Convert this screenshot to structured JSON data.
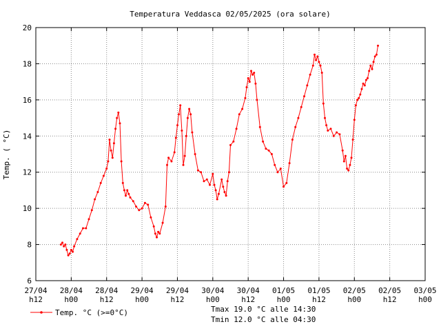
{
  "chart_data": {
    "type": "line",
    "title": "Temperatura Veddasca 02/05/2025 (ora solare)",
    "xlabel": "",
    "ylabel": "Temp. ( °C)",
    "ylim": [
      6,
      20
    ],
    "y_ticks": [
      6,
      8,
      10,
      12,
      14,
      16,
      18,
      20
    ],
    "x_ticks": [
      {
        "line1": "27/04",
        "line2": "h12"
      },
      {
        "line1": "28/04",
        "line2": "h00"
      },
      {
        "line1": "28/04",
        "line2": "h12"
      },
      {
        "line1": "29/04",
        "line2": "h00"
      },
      {
        "line1": "29/04",
        "line2": "h12"
      },
      {
        "line1": "30/04",
        "line2": "h00"
      },
      {
        "line1": "30/04",
        "line2": "h12"
      },
      {
        "line1": "01/05",
        "line2": "h00"
      },
      {
        "line1": "01/05",
        "line2": "h12"
      },
      {
        "line1": "02/05",
        "line2": "h00"
      },
      {
        "line1": "02/05",
        "line2": "h12"
      },
      {
        "line1": "03/05",
        "line2": "h00"
      }
    ],
    "x_unit": "hours from 27/04 h12",
    "xlim": [
      0,
      132
    ],
    "grid": true,
    "legend": "bottom-left",
    "series": [
      {
        "name": "Temp. °C (>=0°C)",
        "color": "#ff0000",
        "points": [
          [
            8.5,
            8.0
          ],
          [
            9.0,
            8.1
          ],
          [
            9.5,
            7.9
          ],
          [
            10.0,
            8.0
          ],
          [
            10.5,
            7.7
          ],
          [
            11.0,
            7.4
          ],
          [
            11.5,
            7.5
          ],
          [
            12.0,
            7.7
          ],
          [
            12.5,
            7.6
          ],
          [
            13.0,
            7.9
          ],
          [
            14.0,
            8.3
          ],
          [
            15.0,
            8.6
          ],
          [
            16.0,
            8.9
          ],
          [
            17.0,
            8.9
          ],
          [
            18.0,
            9.4
          ],
          [
            19.0,
            9.9
          ],
          [
            20.0,
            10.5
          ],
          [
            21.0,
            10.9
          ],
          [
            22.0,
            11.4
          ],
          [
            23.0,
            11.8
          ],
          [
            24.0,
            12.2
          ],
          [
            24.5,
            12.6
          ],
          [
            25.0,
            13.8
          ],
          [
            25.5,
            13.2
          ],
          [
            26.0,
            12.8
          ],
          [
            26.5,
            13.6
          ],
          [
            27.0,
            14.4
          ],
          [
            27.5,
            15.0
          ],
          [
            28.0,
            15.3
          ],
          [
            28.5,
            14.7
          ],
          [
            29.0,
            12.6
          ],
          [
            29.5,
            11.4
          ],
          [
            30.0,
            11.0
          ],
          [
            30.5,
            10.7
          ],
          [
            31.0,
            11.0
          ],
          [
            31.5,
            10.8
          ],
          [
            32.0,
            10.6
          ],
          [
            33.0,
            10.4
          ],
          [
            34.0,
            10.1
          ],
          [
            35.0,
            9.9
          ],
          [
            36.0,
            10.0
          ],
          [
            37.0,
            10.3
          ],
          [
            38.0,
            10.2
          ],
          [
            39.0,
            9.5
          ],
          [
            40.0,
            9.0
          ],
          [
            40.5,
            8.6
          ],
          [
            41.0,
            8.4
          ],
          [
            41.5,
            8.7
          ],
          [
            42.0,
            8.6
          ],
          [
            43.0,
            9.2
          ],
          [
            44.0,
            10.1
          ],
          [
            44.5,
            12.4
          ],
          [
            45.0,
            12.8
          ],
          [
            46.0,
            12.6
          ],
          [
            47.0,
            13.1
          ],
          [
            47.5,
            13.9
          ],
          [
            48.0,
            14.6
          ],
          [
            48.5,
            15.2
          ],
          [
            49.0,
            15.7
          ],
          [
            49.5,
            14.3
          ],
          [
            50.0,
            12.4
          ],
          [
            50.5,
            12.9
          ],
          [
            51.0,
            14.0
          ],
          [
            51.5,
            15.0
          ],
          [
            52.0,
            15.5
          ],
          [
            52.5,
            15.2
          ],
          [
            53.0,
            14.2
          ],
          [
            54.0,
            13.0
          ],
          [
            55.0,
            12.1
          ],
          [
            56.0,
            12.0
          ],
          [
            57.0,
            11.5
          ],
          [
            58.0,
            11.6
          ],
          [
            59.0,
            11.3
          ],
          [
            60.0,
            11.9
          ],
          [
            60.5,
            11.3
          ],
          [
            61.0,
            11.0
          ],
          [
            61.5,
            10.5
          ],
          [
            62.0,
            10.8
          ],
          [
            63.0,
            11.6
          ],
          [
            63.5,
            11.2
          ],
          [
            64.0,
            10.9
          ],
          [
            64.5,
            10.7
          ],
          [
            65.0,
            11.5
          ],
          [
            65.5,
            12.0
          ],
          [
            66.0,
            13.5
          ],
          [
            67.0,
            13.7
          ],
          [
            68.0,
            14.4
          ],
          [
            69.0,
            15.2
          ],
          [
            70.0,
            15.5
          ],
          [
            71.0,
            16.1
          ],
          [
            71.5,
            16.7
          ],
          [
            72.0,
            17.2
          ],
          [
            72.5,
            17.0
          ],
          [
            73.0,
            17.6
          ],
          [
            73.5,
            17.4
          ],
          [
            74.0,
            17.5
          ],
          [
            74.5,
            16.9
          ],
          [
            75.0,
            16.0
          ],
          [
            76.0,
            14.5
          ],
          [
            77.0,
            13.7
          ],
          [
            78.0,
            13.3
          ],
          [
            79.0,
            13.2
          ],
          [
            80.0,
            13.0
          ],
          [
            81.0,
            12.4
          ],
          [
            82.0,
            12.0
          ],
          [
            83.0,
            12.2
          ],
          [
            84.0,
            11.2
          ],
          [
            85.0,
            11.4
          ],
          [
            86.0,
            12.5
          ],
          [
            87.0,
            13.8
          ],
          [
            88.0,
            14.5
          ],
          [
            89.0,
            15.0
          ],
          [
            90.0,
            15.6
          ],
          [
            91.0,
            16.2
          ],
          [
            92.0,
            16.8
          ],
          [
            93.0,
            17.4
          ],
          [
            94.0,
            17.9
          ],
          [
            94.5,
            18.5
          ],
          [
            95.0,
            18.2
          ],
          [
            95.5,
            18.4
          ],
          [
            96.0,
            18.1
          ],
          [
            96.5,
            17.9
          ],
          [
            97.0,
            17.5
          ],
          [
            97.5,
            15.8
          ],
          [
            98.0,
            15.0
          ],
          [
            98.5,
            14.6
          ],
          [
            99.0,
            14.3
          ],
          [
            100.0,
            14.4
          ],
          [
            101.0,
            14.0
          ],
          [
            102.0,
            14.2
          ],
          [
            103.0,
            14.1
          ],
          [
            104.0,
            13.2
          ],
          [
            104.5,
            12.6
          ],
          [
            105.0,
            12.9
          ],
          [
            105.5,
            12.2
          ],
          [
            106.0,
            12.1
          ],
          [
            106.5,
            12.4
          ],
          [
            107.0,
            12.8
          ],
          [
            107.5,
            13.8
          ],
          [
            108.0,
            14.9
          ],
          [
            108.5,
            15.7
          ],
          [
            109.0,
            16.0
          ],
          [
            109.5,
            16.1
          ],
          [
            110.0,
            16.3
          ],
          [
            110.5,
            16.6
          ],
          [
            111.0,
            16.9
          ],
          [
            111.5,
            16.8
          ],
          [
            112.0,
            17.1
          ],
          [
            112.5,
            17.2
          ],
          [
            113.0,
            17.6
          ],
          [
            113.5,
            17.9
          ],
          [
            114.0,
            17.7
          ],
          [
            114.5,
            18.1
          ],
          [
            115.0,
            18.4
          ],
          [
            115.5,
            18.5
          ],
          [
            116.0,
            19.0
          ]
        ]
      }
    ],
    "annotations": [
      "Tmax 19.0 °C alle 14:30",
      "Tmin 12.0 °C alle 04:30"
    ]
  }
}
